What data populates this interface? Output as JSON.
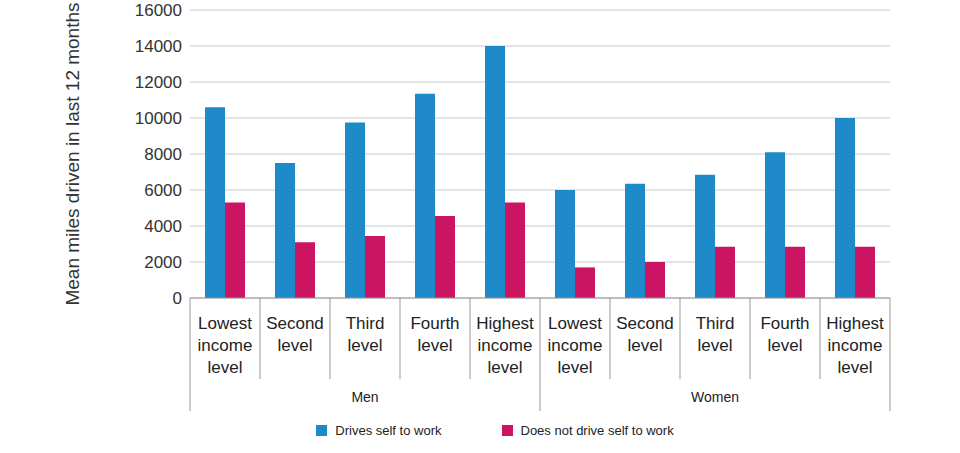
{
  "chart_data": {
    "type": "bar",
    "y_label": "Mean miles driven in last 12 months",
    "categories": [
      "Lowest income level",
      "Second level",
      "Third level",
      "Fourth level",
      "Highest income level",
      "Lowest income level",
      "Second level",
      "Third level",
      "Fourth level",
      "Highest income level"
    ],
    "category_groups": [
      "Men",
      "Men",
      "Men",
      "Men",
      "Men",
      "Women",
      "Women",
      "Women",
      "Women",
      "Women"
    ],
    "series": [
      {
        "name": "Drives self to work",
        "color": "#1f8ac9",
        "values": [
          10600,
          7500,
          9750,
          11350,
          14000,
          6000,
          6350,
          6850,
          8100,
          10000
        ]
      },
      {
        "name": "Does not drive self to work",
        "color": "#cc1562",
        "values": [
          5300,
          3100,
          3450,
          4550,
          5300,
          1700,
          2000,
          2850,
          2850,
          2850
        ]
      }
    ],
    "ylim": [
      0,
      16000
    ],
    "yticks": [
      0,
      2000,
      4000,
      6000,
      8000,
      10000,
      12000,
      14000,
      16000
    ],
    "grid": true,
    "legend": "bottom"
  }
}
